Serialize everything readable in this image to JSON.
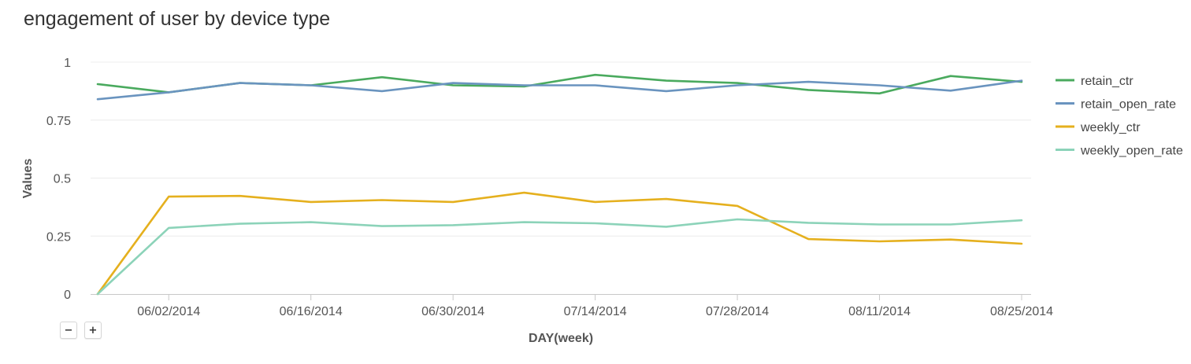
{
  "chart_data": {
    "type": "line",
    "title": "engagement of user by device type",
    "xlabel": "DAY(week)",
    "ylabel": "Values",
    "ylim": [
      0,
      1
    ],
    "yticks": [
      "0",
      "0.25",
      "0.5",
      "0.75",
      "1"
    ],
    "ytick_values": [
      0,
      0.25,
      0.5,
      0.75,
      1
    ],
    "x": [
      "05/26/2014",
      "06/02/2014",
      "06/09/2014",
      "06/16/2014",
      "06/23/2014",
      "06/30/2014",
      "07/07/2014",
      "07/14/2014",
      "07/21/2014",
      "07/28/2014",
      "08/04/2014",
      "08/11/2014",
      "08/18/2014",
      "08/25/2014"
    ],
    "xtick_labels": [
      "06/02/2014",
      "06/16/2014",
      "06/30/2014",
      "07/14/2014",
      "07/28/2014",
      "08/11/2014",
      "08/25/2014"
    ],
    "grid": true,
    "legend_position": "right",
    "series": [
      {
        "name": "retain_ctr",
        "color": "#4aaa5e",
        "values": [
          0.905,
          0.87,
          0.91,
          0.9,
          0.935,
          0.9,
          0.895,
          0.945,
          0.92,
          0.91,
          0.88,
          0.865,
          0.94,
          0.915
        ]
      },
      {
        "name": "retain_open_rate",
        "color": "#6a94bf",
        "values": [
          0.84,
          0.87,
          0.91,
          0.9,
          0.875,
          0.91,
          0.9,
          0.9,
          0.875,
          0.9,
          0.915,
          0.9,
          0.877,
          0.92
        ]
      },
      {
        "name": "weekly_ctr",
        "color": "#e5b01e",
        "values": [
          0.0,
          0.42,
          0.423,
          0.397,
          0.405,
          0.397,
          0.437,
          0.397,
          0.41,
          0.38,
          0.237,
          0.227,
          0.235,
          0.217
        ]
      },
      {
        "name": "weekly_open_rate",
        "color": "#8cd3b9",
        "values": [
          0.0,
          0.285,
          0.303,
          0.31,
          0.293,
          0.297,
          0.31,
          0.305,
          0.29,
          0.322,
          0.307,
          0.3,
          0.3,
          0.318
        ]
      }
    ]
  },
  "controls": {
    "zoom_out": "−",
    "zoom_in": "+"
  }
}
